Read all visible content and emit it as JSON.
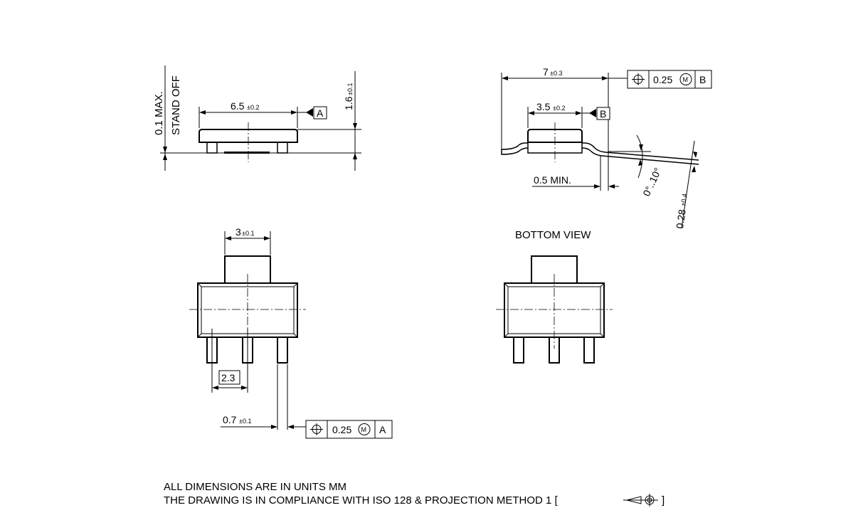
{
  "dims": {
    "side_width": "6.5",
    "side_width_tol": "±0.2",
    "height": "1.6",
    "height_tol": "±0.1",
    "standoff_line1": "0.1 MAX.",
    "standoff_line2": "STAND OFF",
    "datum_a": "A",
    "lead_span": "7",
    "lead_span_tol": "±0.3",
    "body_width": "3.5",
    "body_width_tol": "±0.2",
    "datum_b": "B",
    "lead_min": "0.5 MIN.",
    "angle": "0°..10°",
    "thickness": "0.28",
    "thickness_tol": "±0.4",
    "tab_width": "3",
    "tab_width_tol": "±0.1",
    "pitch": "2.3",
    "lead_width": "0.7",
    "lead_width_tol": "±0.1"
  },
  "tolerance_frames": [
    {
      "symbol": "position-symbol",
      "value": "0.25",
      "modifier": "M",
      "datum": "B"
    },
    {
      "symbol": "position-symbol",
      "value": "0.25",
      "modifier": "M",
      "datum": "A"
    }
  ],
  "labels": {
    "bottom_view": "BOTTOM VIEW"
  },
  "notes": {
    "line1": "ALL DIMENSIONS ARE IN UNITS MM",
    "line2": "THE DRAWING IS IN COMPLIANCE WITH ISO 128 & PROJECTION METHOD 1 [",
    "line2_end": "]"
  }
}
